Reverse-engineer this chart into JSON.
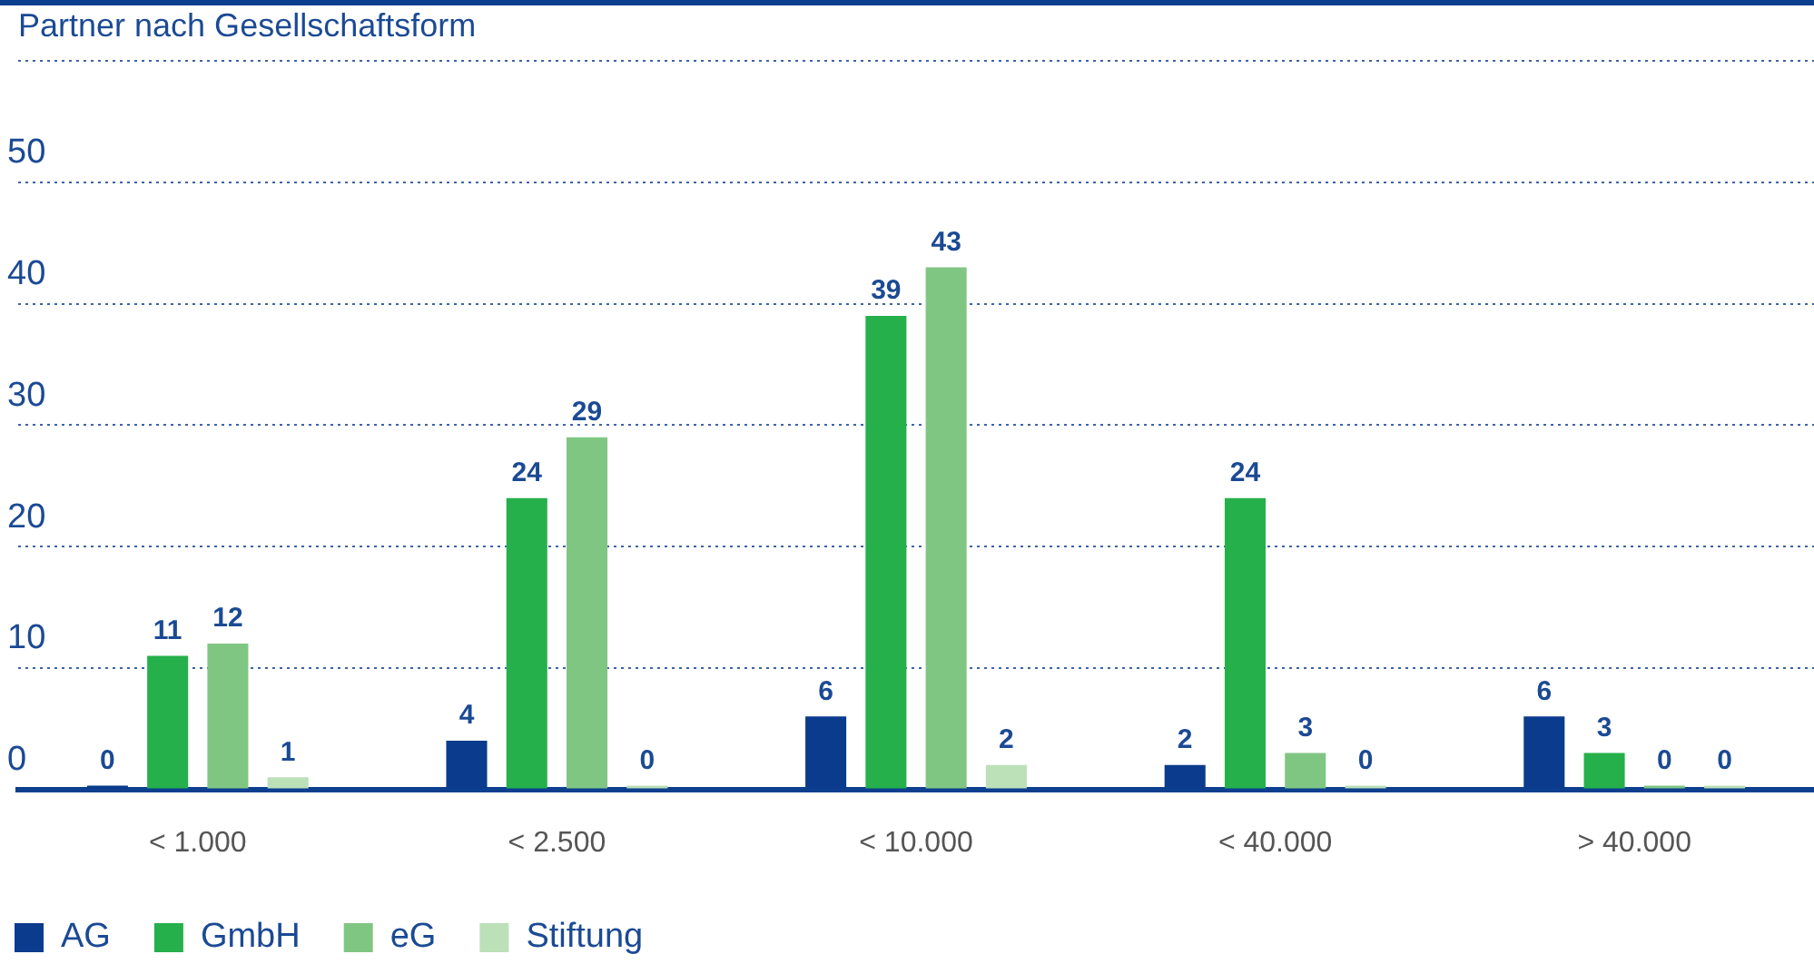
{
  "chart_data": {
    "type": "bar",
    "title": "Partner nach Gesellschaftsform",
    "categories": [
      "< 1.000",
      "< 2.500",
      "< 10.000",
      "< 40.000",
      "> 40.000"
    ],
    "series": [
      {
        "name": "AG",
        "color": "#0b3b8c",
        "values": [
          0,
          4,
          6,
          2,
          6
        ]
      },
      {
        "name": "GmbH",
        "color": "#25b04b",
        "values": [
          11,
          24,
          39,
          24,
          3
        ]
      },
      {
        "name": "eG",
        "color": "#80c683",
        "values": [
          12,
          29,
          43,
          3,
          0
        ]
      },
      {
        "name": "Stiftung",
        "color": "#bce0b8",
        "values": [
          1,
          0,
          2,
          0,
          0
        ]
      }
    ],
    "ylim": [
      0,
      60
    ],
    "yticks": [
      0,
      10,
      20,
      30,
      40,
      50,
      {
        "value": 60,
        "label": null
      }
    ],
    "grid": "y",
    "legend": "bottom left",
    "data_labels": true
  }
}
